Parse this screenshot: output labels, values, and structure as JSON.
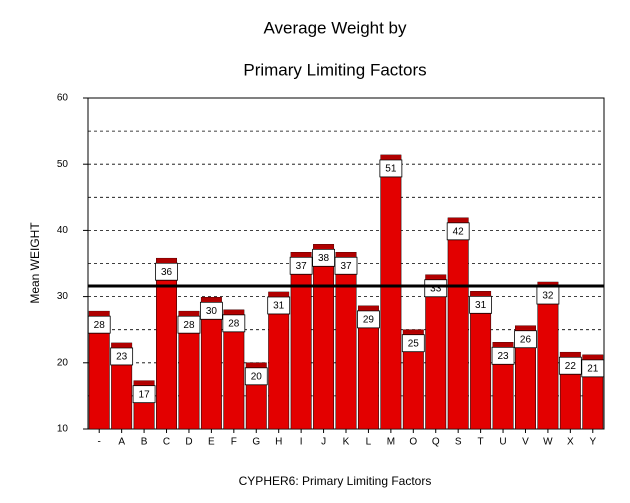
{
  "chart_data": {
    "type": "bar",
    "title": "Average Weight by",
    "subtitle": "Primary Limiting Factors",
    "x_label": "CYPHER6: Primary Limiting Factors",
    "y_label": "Mean WEIGHT",
    "categories": [
      "-",
      "A",
      "B",
      "C",
      "D",
      "E",
      "F",
      "G",
      "H",
      "I",
      "J",
      "K",
      "L",
      "M",
      "O",
      "Q",
      "S",
      "T",
      "U",
      "V",
      "W",
      "X",
      "Y"
    ],
    "values": [
      27.8,
      23.0,
      17.3,
      35.8,
      27.8,
      29.9,
      28.0,
      20.0,
      30.7,
      36.7,
      37.9,
      36.7,
      28.6,
      51.4,
      25.0,
      33.3,
      41.9,
      30.8,
      23.1,
      25.6,
      32.2,
      21.6,
      21.2
    ],
    "value_labels": [
      "28",
      "23",
      "17",
      "36",
      "28",
      "30",
      "28",
      "20",
      "31",
      "37",
      "38",
      "37",
      "29",
      "51",
      "25",
      "33",
      "42",
      "31",
      "23",
      "26",
      "32",
      "22",
      "21"
    ],
    "color": "#e30000",
    "reference_line": 31.6,
    "ylim": [
      10,
      60
    ],
    "yticks": [
      10,
      20,
      30,
      40,
      50,
      60
    ],
    "minor_yticks": [
      15,
      25,
      35,
      45,
      55
    ],
    "grid": true
  }
}
